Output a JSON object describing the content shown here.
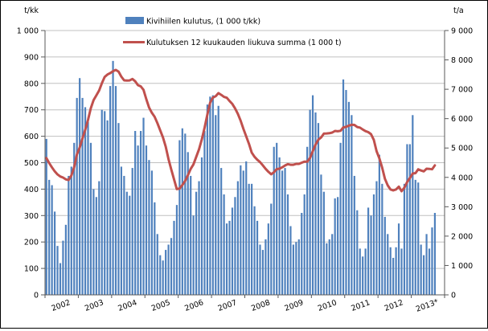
{
  "chart": {
    "left_axis_title": "t/kk",
    "right_axis_title": "t/a",
    "legend": [
      {
        "label": "Kivihiilen kulutus, (1 000 t/kk)",
        "type": "bar"
      },
      {
        "label": "Kulutuksen 12 kuukauden liukuva summa (1 000 t)",
        "type": "line"
      }
    ]
  },
  "chart_data": {
    "type": "combo",
    "title": "",
    "legend_position": "top",
    "grid": "horizontal",
    "x_categories_years": [
      "2002",
      "2003",
      "2004",
      "2005",
      "2006",
      "2007",
      "2008",
      "2009",
      "2010",
      "2011",
      "2012",
      "2013*"
    ],
    "left_axis": {
      "label": "t/kk",
      "min": 0,
      "max": 1000,
      "step": 100
    },
    "right_axis": {
      "label": "t/a",
      "min": 0,
      "max": 9000,
      "step": 1000
    },
    "colors": {
      "bar": "#4F81BD",
      "line": "#C0504D",
      "grid": "#C0C0C0",
      "axis": "#595959"
    },
    "series": [
      {
        "name": "Kivihiilen kulutus, (1 000 t/kk)",
        "type": "bar",
        "axis": "left",
        "unit": "1 000 t/kk",
        "color": "#4F81BD",
        "values_by_year": [
          {
            "year": "2002",
            "values": [
              590,
              435,
              415,
              315,
              185,
              120,
              205,
              265,
              450,
              485,
              575,
              745
            ]
          },
          {
            "year": "2003",
            "values": [
              820,
              745,
              710,
              655,
              575,
              400,
              370,
              430,
              700,
              695,
              660,
              790
            ]
          },
          {
            "year": "2004",
            "values": [
              885,
              790,
              650,
              485,
              450,
              390,
              375,
              480,
              620,
              565,
              620,
              670
            ]
          },
          {
            "year": "2005",
            "values": [
              565,
              510,
              470,
              350,
              230,
              150,
              130,
              170,
              190,
              215,
              280,
              340
            ]
          },
          {
            "year": "2006",
            "values": [
              585,
              630,
              610,
              540,
              450,
              300,
              390,
              430,
              520,
              620,
              720,
              750
            ]
          },
          {
            "year": "2007",
            "values": [
              755,
              680,
              715,
              480,
              380,
              270,
              280,
              330,
              370,
              430,
              490,
              470
            ]
          },
          {
            "year": "2008",
            "values": [
              505,
              420,
              420,
              335,
              280,
              190,
              170,
              210,
              270,
              345,
              560,
              575
            ]
          },
          {
            "year": "2009",
            "values": [
              520,
              470,
              480,
              380,
              260,
              190,
              200,
              210,
              310,
              380,
              560,
              700
            ]
          },
          {
            "year": "2010",
            "values": [
              755,
              690,
              650,
              455,
              390,
              195,
              210,
              230,
              365,
              370,
              575,
              815
            ]
          },
          {
            "year": "2011",
            "values": [
              775,
              730,
              680,
              450,
              320,
              175,
              145,
              175,
              330,
              300,
              380,
              430
            ]
          },
          {
            "year": "2012",
            "values": [
              530,
              420,
              295,
              230,
              180,
              140,
              180,
              270,
              175,
              420,
              570,
              570
            ]
          },
          {
            "year": "2013*",
            "values": [
              680,
              435,
              425,
              190,
              150,
              230,
              175,
              255,
              310
            ]
          }
        ]
      },
      {
        "name": "Kulutuksen 12 kuukauden liukuva summa (1 000 t)",
        "type": "line",
        "axis": "right",
        "unit": "1 000 t",
        "color": "#C0504D",
        "values_by_year": [
          {
            "year": "2002",
            "values": [
              4660,
              4485,
              4340,
              4205,
              4100,
              4030,
              3995,
              3930,
              3910,
              4065,
              4340,
              4785
            ]
          },
          {
            "year": "2003",
            "values": [
              5015,
              5325,
              5620,
              5960,
              6350,
              6630,
              6795,
              6960,
              7210,
              7420,
              7505,
              7550
            ]
          },
          {
            "year": "2004",
            "values": [
              7615,
              7660,
              7600,
              7430,
              7305,
              7295,
              7300,
              7350,
              7270,
              7140,
              7100,
              6980
            ]
          },
          {
            "year": "2005",
            "values": [
              6660,
              6380,
              6200,
              6065,
              5845,
              5605,
              5360,
              5050,
              4620,
              4270,
              3930,
              3600
            ]
          },
          {
            "year": "2006",
            "values": [
              3620,
              3740,
              3880,
              4070,
              4290,
              4440,
              4700,
              4960,
              5290,
              5695,
              6135,
              6545
            ]
          },
          {
            "year": "2007",
            "values": [
              6715,
              6765,
              6870,
              6810,
              6740,
              6710,
              6600,
              6500,
              6350,
              6160,
              5930,
              5650
            ]
          },
          {
            "year": "2008",
            "values": [
              5400,
              5140,
              4845,
              4700,
              4600,
              4520,
              4410,
              4290,
              4190,
              4105,
              4175,
              4280
            ]
          },
          {
            "year": "2009",
            "values": [
              4295,
              4345,
              4405,
              4450,
              4430,
              4430,
              4460,
              4460,
              4500,
              4535,
              4535,
              4660
            ]
          },
          {
            "year": "2010",
            "values": [
              4895,
              5115,
              5285,
              5360,
              5490,
              5495,
              5505,
              5525,
              5580,
              5570,
              5585,
              5700
            ]
          },
          {
            "year": "2011",
            "values": [
              5720,
              5760,
              5790,
              5785,
              5715,
              5695,
              5630,
              5575,
              5540,
              5470,
              5275,
              4890
            ]
          },
          {
            "year": "2012",
            "values": [
              4645,
              4335,
              3950,
              3730,
              3590,
              3555,
              3590,
              3685,
              3530,
              3650,
              3840,
              3980
            ]
          },
          {
            "year": "2013*",
            "values": [
              4130,
              4145,
              4275,
              4235,
              4205,
              4295,
              4290,
              4275,
              4410
            ]
          }
        ]
      }
    ]
  }
}
